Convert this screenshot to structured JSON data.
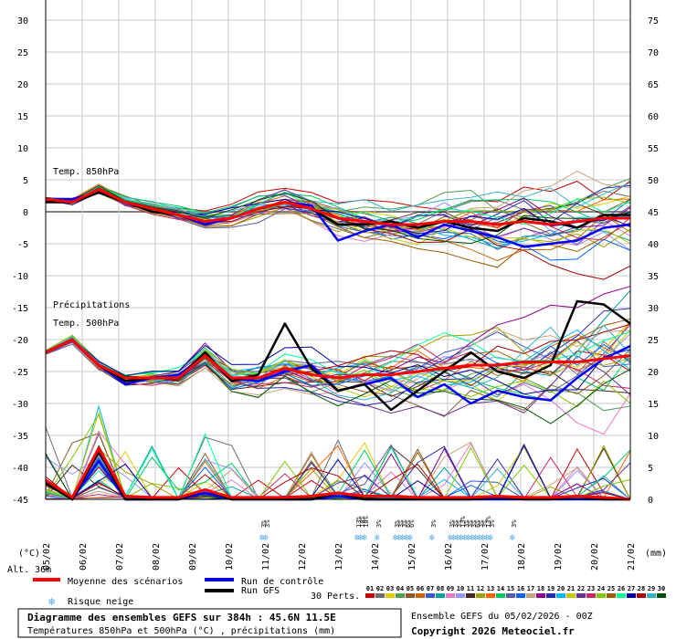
{
  "header": {
    "title": "Diagramme des ensembles GEFS sur 384h : 45.6N 11.5E",
    "subtitle": "Températures 850hPa et 500hPa (°C) , précipitations (mm)",
    "run_info": "Ensemble GEFS du 05/02/2026 - 00Z",
    "copyright": "Copyright 2026 Meteociel.fr"
  },
  "labels": {
    "t850": "Temp. 850hPa",
    "precip": "Précipitations",
    "t500": "Temp. 500hPa",
    "unit_left": "(°C)",
    "unit_right": "(mm)",
    "altitude": "Alt. 36m",
    "perts": "30 Perts."
  },
  "legend": {
    "mean": "Moyenne des scénarios",
    "control": "Run de contrôle",
    "gfs": "Run GFS",
    "snow": "Risque neige"
  },
  "colors": {
    "mean": "#ff0000",
    "control": "#0000ff",
    "gfs": "#000000",
    "grid": "#c8c8c8",
    "snow": "#5aaae6"
  },
  "pert_labels": [
    "01",
    "02",
    "03",
    "04",
    "05",
    "06",
    "07",
    "08",
    "09",
    "10",
    "11",
    "12",
    "13",
    "14",
    "15",
    "16",
    "17",
    "18",
    "19",
    "20",
    "21",
    "22",
    "23",
    "24",
    "25",
    "26",
    "27",
    "28",
    "29",
    "30"
  ],
  "pert_colors": [
    "#c80000",
    "#6e6e6e",
    "#e6c800",
    "#50a050",
    "#8c5a28",
    "#c86400",
    "#3c5ac8",
    "#00a0a0",
    "#e678c8",
    "#9696ff",
    "#46281e",
    "#a0a000",
    "#ff6400",
    "#00c864",
    "#5a5aa0",
    "#0064ff",
    "#c8a078",
    "#8c008c",
    "#2828b4",
    "#00b4ff",
    "#c8c800",
    "#643296",
    "#c82864",
    "#7ec800",
    "#a05a00",
    "#00ff96",
    "#0000a0",
    "#aa0000",
    "#32b4c8",
    "#005000"
  ],
  "chart_data": {
    "type": "line",
    "x_dates": [
      "05/02",
      "06/02",
      "07/02",
      "08/02",
      "09/02",
      "10/02",
      "11/02",
      "12/02",
      "13/02",
      "14/02",
      "15/02",
      "16/02",
      "17/02",
      "18/02",
      "19/02",
      "20/02",
      "21/02"
    ],
    "left_axis_ticks": [
      30,
      25,
      20,
      15,
      10,
      5,
      0,
      -5,
      -10,
      -15,
      -20,
      -25,
      -30,
      -35,
      -40,
      -45
    ],
    "right_axis_ticks": [
      75,
      70,
      65,
      60,
      55,
      50,
      45,
      40,
      35,
      30,
      25,
      20,
      15,
      10,
      5,
      0
    ],
    "left_axis_range": [
      -45,
      30
    ],
    "right_axis_range": [
      0,
      75
    ],
    "grid": true,
    "t850_mean": [
      2.0,
      1.5,
      3.5,
      1.5,
      0.5,
      -0.5,
      -1.5,
      -1.0,
      0.5,
      1.5,
      0.5,
      -1.0,
      -1.5,
      -2.0,
      -2.0,
      -1.5,
      -1.5,
      -2.0,
      -1.5,
      -2.0,
      -1.5,
      -1.0,
      -1.0
    ],
    "t850_control": [
      2.0,
      2.0,
      3.0,
      1.5,
      0.5,
      -0.5,
      -2.0,
      -1.0,
      0.5,
      1.5,
      1.0,
      -4.5,
      -3.0,
      -2.0,
      -4.0,
      -2.0,
      -3.0,
      -4.0,
      -5.5,
      -5.0,
      -4.5,
      -2.5,
      -2.0
    ],
    "t850_gfs": [
      1.5,
      1.5,
      3.0,
      1.5,
      0.0,
      -0.5,
      -1.5,
      -1.0,
      0.5,
      1.5,
      0.5,
      -2.0,
      -2.0,
      -1.5,
      -2.5,
      -1.5,
      -2.5,
      -3.0,
      -1.0,
      -1.5,
      -2.5,
      -0.5,
      -0.5
    ],
    "t500_mean": [
      -22.0,
      -20.0,
      -24.0,
      -26.0,
      -26.0,
      -26.0,
      -22.5,
      -26.0,
      -26.0,
      -24.5,
      -25.5,
      -26.0,
      -25.5,
      -25.5,
      -25.0,
      -24.5,
      -24.0,
      -24.0,
      -23.5,
      -23.5,
      -23.5,
      -23.0,
      -22.5
    ],
    "t500_control": [
      -22.0,
      -20.0,
      -24.0,
      -27.0,
      -26.0,
      -25.5,
      -22.5,
      -26.0,
      -26.5,
      -25.0,
      -24.0,
      -28.0,
      -27.0,
      -26.0,
      -29.0,
      -27.0,
      -30.0,
      -28.0,
      -29.0,
      -29.5,
      -26.0,
      -23.0,
      -21.0
    ],
    "t500_gfs": [
      -22.0,
      -20.0,
      -24.0,
      -26.5,
      -26.0,
      -26.0,
      -22.0,
      -26.5,
      -25.5,
      -17.5,
      -24.5,
      -28.0,
      -27.0,
      -31.0,
      -28.0,
      -25.0,
      -22.0,
      -25.0,
      -26.0,
      -24.0,
      -14.0,
      -14.5,
      -17.5
    ],
    "precip_mean_mm": [
      3.0,
      0.3,
      8.0,
      0.5,
      0.3,
      0.3,
      1.5,
      0.3,
      0.3,
      0.3,
      0.5,
      1.0,
      0.5,
      0.5,
      0.3,
      0.3,
      0.3,
      0.5,
      0.3,
      0.3,
      0.5,
      0.3,
      0.0
    ],
    "precip_control_mm": [
      3.0,
      0.0,
      6.0,
      0.0,
      0.0,
      0.0,
      1.0,
      0.0,
      0.0,
      0.0,
      0.0,
      0.5,
      0.0,
      0.0,
      0.0,
      0.0,
      0.0,
      0.0,
      0.0,
      0.0,
      0.0,
      0.0,
      0.0
    ],
    "precip_gfs_mm": [
      2.5,
      0.0,
      7.5,
      0.0,
      0.0,
      0.0,
      1.5,
      0.0,
      0.0,
      0.0,
      0.0,
      1.0,
      0.0,
      0.0,
      0.0,
      0.0,
      0.0,
      0.5,
      0.0,
      0.0,
      0.5,
      0.0,
      0.0
    ],
    "snow_risk": [
      {
        "date_index": 5.95,
        "pct": "3%"
      },
      {
        "date_index": 6.05,
        "pct": "3%"
      },
      {
        "date_index": 8.55,
        "pct": "13%"
      },
      {
        "date_index": 8.65,
        "pct": "10%"
      },
      {
        "date_index": 8.75,
        "pct": "10%"
      },
      {
        "date_index": 9.1,
        "pct": "3%"
      },
      {
        "date_index": 9.6,
        "pct": "3%"
      },
      {
        "date_index": 9.7,
        "pct": "3%"
      },
      {
        "date_index": 9.8,
        "pct": "3%"
      },
      {
        "date_index": 9.9,
        "pct": "6%"
      },
      {
        "date_index": 10.0,
        "pct": "6%"
      },
      {
        "date_index": 10.6,
        "pct": "3%"
      },
      {
        "date_index": 11.1,
        "pct": "3%"
      },
      {
        "date_index": 11.2,
        "pct": "3%"
      },
      {
        "date_index": 11.3,
        "pct": "3%"
      },
      {
        "date_index": 11.4,
        "pct": "13%"
      },
      {
        "date_index": 11.5,
        "pct": "3%"
      },
      {
        "date_index": 11.6,
        "pct": "3%"
      },
      {
        "date_index": 11.7,
        "pct": "3%"
      },
      {
        "date_index": 11.8,
        "pct": "6%"
      },
      {
        "date_index": 11.9,
        "pct": "3%"
      },
      {
        "date_index": 12.0,
        "pct": "3%"
      },
      {
        "date_index": 12.1,
        "pct": "13%"
      },
      {
        "date_index": 12.2,
        "pct": "3%"
      },
      {
        "date_index": 12.8,
        "pct": "3%"
      }
    ]
  }
}
